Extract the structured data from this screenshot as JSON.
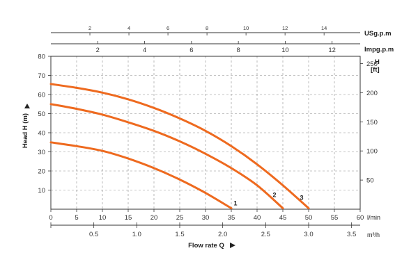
{
  "chart_data": {
    "type": "line",
    "xlabel": "Flow rate Q",
    "ylabel": "Head H (m)",
    "x_unit": "l/min",
    "xlim": [
      0,
      60
    ],
    "ylim": [
      0,
      80
    ],
    "x_ticks": [
      0,
      5,
      10,
      15,
      20,
      25,
      30,
      35,
      40,
      45,
      50,
      55,
      60
    ],
    "y_ticks": [
      10,
      20,
      30,
      40,
      50,
      60,
      70,
      80
    ],
    "grid": true,
    "curve_color": "#ee6a1f",
    "series": [
      {
        "name": "1",
        "x": [
          0,
          5,
          10,
          15,
          20,
          25,
          30,
          35
        ],
        "y": [
          35,
          33,
          30.5,
          26.5,
          21.5,
          15.5,
          8.5,
          0.5
        ]
      },
      {
        "name": "2",
        "x": [
          0,
          5,
          10,
          15,
          20,
          25,
          30,
          35,
          40,
          45
        ],
        "y": [
          55,
          52.5,
          49.5,
          45.5,
          41,
          35.5,
          29,
          21.5,
          12.5,
          0.5
        ]
      },
      {
        "name": "3",
        "x": [
          0,
          5,
          10,
          15,
          20,
          25,
          30,
          35,
          40,
          45,
          50
        ],
        "y": [
          65.5,
          63.5,
          61,
          57.5,
          53,
          47.5,
          41,
          33,
          23.5,
          12.5,
          0.5
        ]
      }
    ],
    "secondary_axes": {
      "top_usgpm": {
        "label": "USg.p.m",
        "ticks": [
          "2",
          "4",
          "6",
          "8",
          "10",
          "12",
          "14"
        ],
        "values": [
          2,
          4,
          6,
          8,
          10,
          12,
          14
        ]
      },
      "top_impgpm": {
        "label": "Impg.p.m",
        "ticks": [
          "2",
          "4",
          "6",
          "8",
          "10",
          "12"
        ],
        "values": [
          2,
          4,
          6,
          8,
          10,
          12
        ]
      },
      "right_ft": {
        "label_top": "H",
        "label_bottom": "[ft]",
        "ticks": [
          "50",
          "100",
          "150",
          "200",
          "250"
        ],
        "values": [
          50,
          100,
          150,
          200,
          250
        ]
      },
      "bottom_m3h": {
        "label": "m³/h",
        "ticks": [
          "0.5",
          "1.0",
          "1.5",
          "2.0",
          "2.5",
          "3.0",
          "3.5"
        ],
        "values": [
          0.5,
          1.0,
          1.5,
          2.0,
          2.5,
          3.0,
          3.5
        ]
      }
    }
  }
}
